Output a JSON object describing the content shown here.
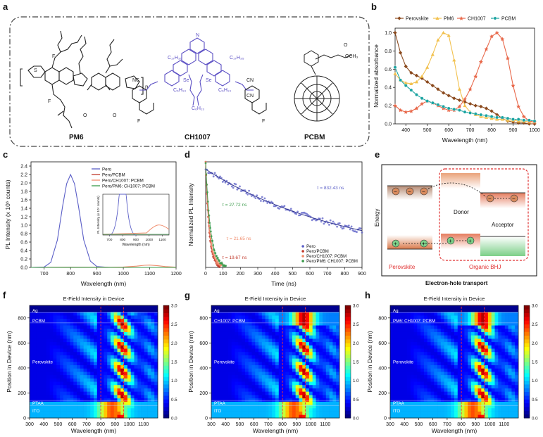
{
  "panels": {
    "a": {
      "label": "a",
      "molecules": [
        "PM6",
        "CH1007",
        "PCBM"
      ],
      "atoms": {
        "c17h35": "C₁₇H₃₅",
        "c6h13": "C₆H₁₃",
        "se": "Se",
        "n": "N",
        "s": "S",
        "f": "F",
        "cn": "CN",
        "nc": "NC",
        "o": "O",
        "och3": "OCH₃",
        "repeat": "n"
      }
    },
    "b": {
      "label": "b"
    },
    "c": {
      "label": "c"
    },
    "d": {
      "label": "d"
    },
    "e": {
      "label": "e",
      "y_axis": "Energy",
      "x_axis": "Electron-hole transport",
      "donor": "Donor",
      "acceptor": "Acceptor",
      "perovskite": "Perovskite",
      "bhj": "Organic BHJ"
    },
    "f": {
      "label": "f",
      "title": "E-Field Intensity in Device",
      "layers": [
        "Ag",
        "PCBM",
        "Perovskite",
        "PTAA",
        "ITO"
      ]
    },
    "g": {
      "label": "g",
      "title": "E-Field Intensity in Device",
      "layers": [
        "Ag",
        "CH1007: PCBM",
        "Perovskite",
        "PTAA",
        "ITO"
      ]
    },
    "h": {
      "label": "h",
      "title": "E-Field Intensity in Device",
      "layers": [
        "Ag",
        "PM6: CH1007: PCBM",
        "Perovskite",
        "PTAA",
        "ITO"
      ]
    }
  },
  "colors": {
    "perovskite": "#8b4a1e",
    "pm6": "#f2c14e",
    "ch1007": "#e8684a",
    "pcbm": "#1aa3a0",
    "pero": "#5b5fc7",
    "pero_pcbm": "#c0392b",
    "pero_ch_pcbm": "#f08c6c",
    "pero_pm6_ch_pcbm": "#3a9a4a",
    "molecule_purple": "#5b4fc4",
    "bhj_border": "#e03030"
  },
  "chart_data": [
    {
      "panel": "b",
      "type": "line",
      "xlabel": "Wavelength (nm)",
      "ylabel": "Normalized absorbance",
      "xlim": [
        350,
        1000
      ],
      "ylim": [
        0,
        1.05
      ],
      "xticks": [
        400,
        500,
        600,
        700,
        800,
        900,
        1000
      ],
      "yticks": [
        0.0,
        0.2,
        0.4,
        0.6,
        0.8,
        1.0
      ],
      "legend": "top",
      "series": [
        {
          "name": "Perovskite",
          "color": "#8b4a1e",
          "marker": "diamond",
          "x": [
            350,
            375,
            400,
            425,
            450,
            475,
            500,
            525,
            550,
            575,
            600,
            625,
            650,
            675,
            700,
            725,
            750,
            775,
            800,
            825,
            850,
            875,
            900,
            925,
            950,
            975,
            1000
          ],
          "y": [
            1.0,
            0.78,
            0.63,
            0.56,
            0.53,
            0.5,
            0.46,
            0.42,
            0.38,
            0.34,
            0.31,
            0.28,
            0.26,
            0.24,
            0.22,
            0.2,
            0.19,
            0.17,
            0.14,
            0.1,
            0.06,
            0.03,
            0.02,
            0.01,
            0.01,
            0.0,
            0.0
          ]
        },
        {
          "name": "PM6",
          "color": "#f2c14e",
          "marker": "triangle",
          "x": [
            350,
            375,
            400,
            425,
            450,
            475,
            500,
            525,
            550,
            575,
            600,
            625,
            650,
            675,
            700,
            725,
            750,
            775,
            800,
            825,
            850,
            875,
            900,
            925,
            950,
            975,
            1000
          ],
          "y": [
            0.55,
            0.48,
            0.45,
            0.44,
            0.46,
            0.52,
            0.62,
            0.76,
            0.92,
            1.0,
            0.97,
            0.7,
            0.38,
            0.2,
            0.13,
            0.1,
            0.08,
            0.07,
            0.06,
            0.05,
            0.05,
            0.04,
            0.04,
            0.03,
            0.03,
            0.02,
            0.02
          ]
        },
        {
          "name": "CH1007",
          "color": "#e8684a",
          "marker": "star",
          "x": [
            350,
            375,
            400,
            425,
            450,
            475,
            500,
            525,
            550,
            575,
            600,
            625,
            650,
            675,
            700,
            725,
            750,
            775,
            800,
            825,
            850,
            875,
            900,
            925,
            950,
            975,
            1000
          ],
          "y": [
            0.2,
            0.15,
            0.13,
            0.14,
            0.17,
            0.22,
            0.25,
            0.23,
            0.2,
            0.17,
            0.15,
            0.15,
            0.19,
            0.27,
            0.38,
            0.52,
            0.68,
            0.82,
            0.96,
            1.0,
            0.93,
            0.72,
            0.42,
            0.19,
            0.08,
            0.03,
            0.02
          ]
        },
        {
          "name": "PCBM",
          "color": "#1aa3a0",
          "marker": "circle",
          "x": [
            350,
            375,
            400,
            425,
            450,
            475,
            500,
            525,
            550,
            575,
            600,
            625,
            650,
            675,
            700,
            725,
            750,
            775,
            800,
            825,
            850,
            875,
            900,
            925,
            950,
            975,
            1000
          ],
          "y": [
            0.62,
            0.48,
            0.42,
            0.37,
            0.32,
            0.28,
            0.25,
            0.23,
            0.21,
            0.19,
            0.17,
            0.16,
            0.15,
            0.13,
            0.12,
            0.11,
            0.1,
            0.09,
            0.08,
            0.07,
            0.07,
            0.06,
            0.05,
            0.05,
            0.04,
            0.04,
            0.03
          ]
        }
      ]
    },
    {
      "panel": "c",
      "type": "line",
      "xlabel": "Wavelength (nm)",
      "ylabel": "PL Intensity (x 10⁶ counts)",
      "xlim": [
        650,
        1200
      ],
      "ylim": [
        0,
        2.5
      ],
      "xticks": [
        700,
        800,
        900,
        1000,
        1100,
        1200
      ],
      "yticks": [
        0.0,
        0.2,
        0.4,
        0.6,
        0.8,
        1.0,
        1.2,
        1.4,
        1.6,
        1.8,
        2.0,
        2.2,
        2.4
      ],
      "legend": "top-right",
      "series": [
        {
          "name": "Pero",
          "color": "#5b5fc7",
          "x": [
            650,
            700,
            725,
            750,
            770,
            785,
            800,
            815,
            830,
            850,
            875,
            900,
            950,
            1000,
            1100,
            1200
          ],
          "y": [
            0,
            0.01,
            0.12,
            0.65,
            1.45,
            1.98,
            2.2,
            1.98,
            1.45,
            0.65,
            0.15,
            0.02,
            0,
            0,
            0,
            0
          ]
        },
        {
          "name": "Pero/PCBM",
          "color": "#c0392b",
          "x": [
            650,
            800,
            900,
            1000,
            1200
          ],
          "y": [
            0,
            0.003,
            0.001,
            0,
            0
          ]
        },
        {
          "name": "Pero/CH1007: PCBM",
          "color": "#f08c6c",
          "x": [
            650,
            800,
            950,
            1000,
            1050,
            1080,
            1100,
            1130,
            1160,
            1200
          ],
          "y": [
            0,
            0.004,
            0.004,
            0.01,
            0.03,
            0.05,
            0.055,
            0.04,
            0.02,
            0.005
          ]
        },
        {
          "name": "Pero/PM6: CH1007: PCBM",
          "color": "#3a9a4a",
          "x": [
            650,
            800,
            900,
            1000,
            1200
          ],
          "y": [
            0,
            0.002,
            0.001,
            0,
            0
          ]
        }
      ],
      "inset": {
        "xlabel": "Wavelength (nm)",
        "ylabel": "PL Intensity (x 10⁴ counts)",
        "xlim": [
          650,
          1150
        ],
        "xticks": [
          700,
          800,
          900,
          1000,
          1100
        ]
      }
    },
    {
      "panel": "d",
      "type": "scatter",
      "xlabel": "Time (ns)",
      "ylabel": "Normalized PL Intensity",
      "xlim": [
        0,
        900
      ],
      "ylim": [
        0,
        1.0
      ],
      "xticks": [
        0,
        100,
        200,
        300,
        400,
        500,
        600,
        700,
        800,
        900
      ],
      "legend": "bottom-right",
      "series": [
        {
          "name": "Pero",
          "color": "#5b5fc7",
          "tau": 832.43
        },
        {
          "name": "Pero/PCBM",
          "color": "#c0392b",
          "tau": 19.67
        },
        {
          "name": "Pero/CH1007: PCBM",
          "color": "#f08c6c",
          "tau": 21.65
        },
        {
          "name": "Pero/PM6: CH1007: PCBM",
          "color": "#3a9a4a",
          "tau": 27.72
        }
      ],
      "annotations": [
        "τ = 832.43 ns",
        "τ = 27.72 ns",
        "τ = 21.65 ns",
        "τ = 19.67 ns"
      ]
    },
    {
      "panel": "f",
      "type": "heatmap",
      "xlabel": "Wavelength (nm)",
      "ylabel": "Position in Device (nm)",
      "xlim": [
        300,
        1200
      ],
      "ylim": [
        0,
        900
      ],
      "xticks": [
        300,
        400,
        500,
        600,
        700,
        800,
        900,
        1000,
        1100
      ],
      "yticks": [
        0,
        200,
        400,
        600,
        800
      ],
      "colorbar": {
        "min": 0.0,
        "max": 3.0,
        "ticks": [
          0.0,
          0.5,
          1.0,
          1.5,
          2.0,
          2.5,
          3.0
        ]
      }
    },
    {
      "panel": "g",
      "type": "heatmap",
      "xlabel": "Wavelength (nm)",
      "ylabel": "Position in Device (nm)",
      "xlim": [
        300,
        1200
      ],
      "ylim": [
        0,
        900
      ],
      "xticks": [
        300,
        400,
        500,
        600,
        700,
        800,
        900,
        1000,
        1100
      ],
      "yticks": [
        0,
        200,
        400,
        600,
        800
      ],
      "colorbar": {
        "min": 0.0,
        "max": 3.0,
        "ticks": [
          0.0,
          0.5,
          1.0,
          1.5,
          2.0,
          2.5,
          3.0
        ]
      }
    },
    {
      "panel": "h",
      "type": "heatmap",
      "xlabel": "Wavelength (nm)",
      "ylabel": "Position in Device (nm)",
      "xlim": [
        300,
        1200
      ],
      "ylim": [
        0,
        900
      ],
      "xticks": [
        300,
        400,
        500,
        600,
        700,
        800,
        900,
        1000,
        1100
      ],
      "yticks": [
        0,
        200,
        400,
        600,
        800
      ],
      "colorbar": {
        "min": 0.0,
        "max": 3.0,
        "ticks": [
          0.0,
          0.5,
          1.0,
          1.5,
          2.0,
          2.5,
          3.0
        ]
      }
    }
  ]
}
